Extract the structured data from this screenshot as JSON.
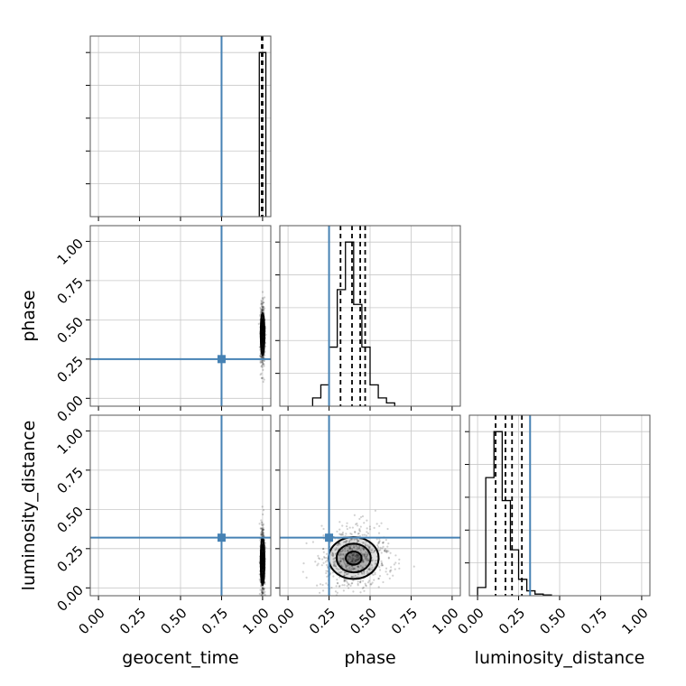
{
  "chart_data": {
    "type": "corner",
    "parameters": [
      "geocent_time",
      "phase",
      "luminosity_distance"
    ],
    "axis_labels": {
      "x": [
        "geocent_time",
        "phase",
        "luminosity_distance"
      ],
      "y": [
        "phase",
        "luminosity_distance"
      ]
    },
    "tick_values": [
      0.0,
      0.25,
      0.5,
      0.75,
      1.0
    ],
    "tick_labels": [
      "0.00",
      "0.25",
      "0.50",
      "0.75",
      "1.00"
    ],
    "xlim": [
      -0.05,
      1.05
    ],
    "ylim": [
      -0.05,
      1.1
    ],
    "grid": true,
    "injection": {
      "geocent_time": 0.75,
      "phase": 0.25,
      "luminosity_distance": 0.32
    },
    "injection_color": "#4682b4",
    "marginals": [
      {
        "parameter": "geocent_time",
        "hist_edges": [
          0.98,
          1.0,
          1.02
        ],
        "hist_counts": [
          1.0,
          1.0
        ],
        "quantiles": [
          0.995,
          1.0
        ]
      },
      {
        "parameter": "phase",
        "hist_edges": [
          0.15,
          0.2,
          0.25,
          0.3,
          0.35,
          0.4,
          0.45,
          0.5,
          0.55,
          0.6,
          0.65
        ],
        "hist_counts": [
          0.05,
          0.13,
          0.36,
          0.71,
          1.0,
          0.62,
          0.36,
          0.13,
          0.05,
          0.02
        ],
        "quantiles": [
          0.32,
          0.39,
          0.44,
          0.47
        ]
      },
      {
        "parameter": "luminosity_distance",
        "hist_edges": [
          0.0,
          0.05,
          0.1,
          0.15,
          0.2,
          0.25,
          0.3,
          0.35,
          0.4,
          0.45
        ],
        "hist_counts": [
          0.05,
          0.72,
          1.0,
          0.58,
          0.28,
          0.1,
          0.03,
          0.01,
          0.005
        ],
        "quantiles": [
          0.11,
          0.17,
          0.21,
          0.27
        ]
      }
    ],
    "joint_2d": [
      {
        "x": "geocent_time",
        "y": "phase",
        "center": [
          1.0,
          0.41
        ],
        "spread": [
          0.005,
          0.07
        ]
      },
      {
        "x": "geocent_time",
        "y": "luminosity_distance",
        "center": [
          1.0,
          0.17
        ],
        "spread": [
          0.005,
          0.08
        ]
      },
      {
        "x": "phase",
        "y": "luminosity_distance",
        "center": [
          0.4,
          0.19
        ],
        "spread": [
          0.08,
          0.07
        ]
      }
    ]
  }
}
